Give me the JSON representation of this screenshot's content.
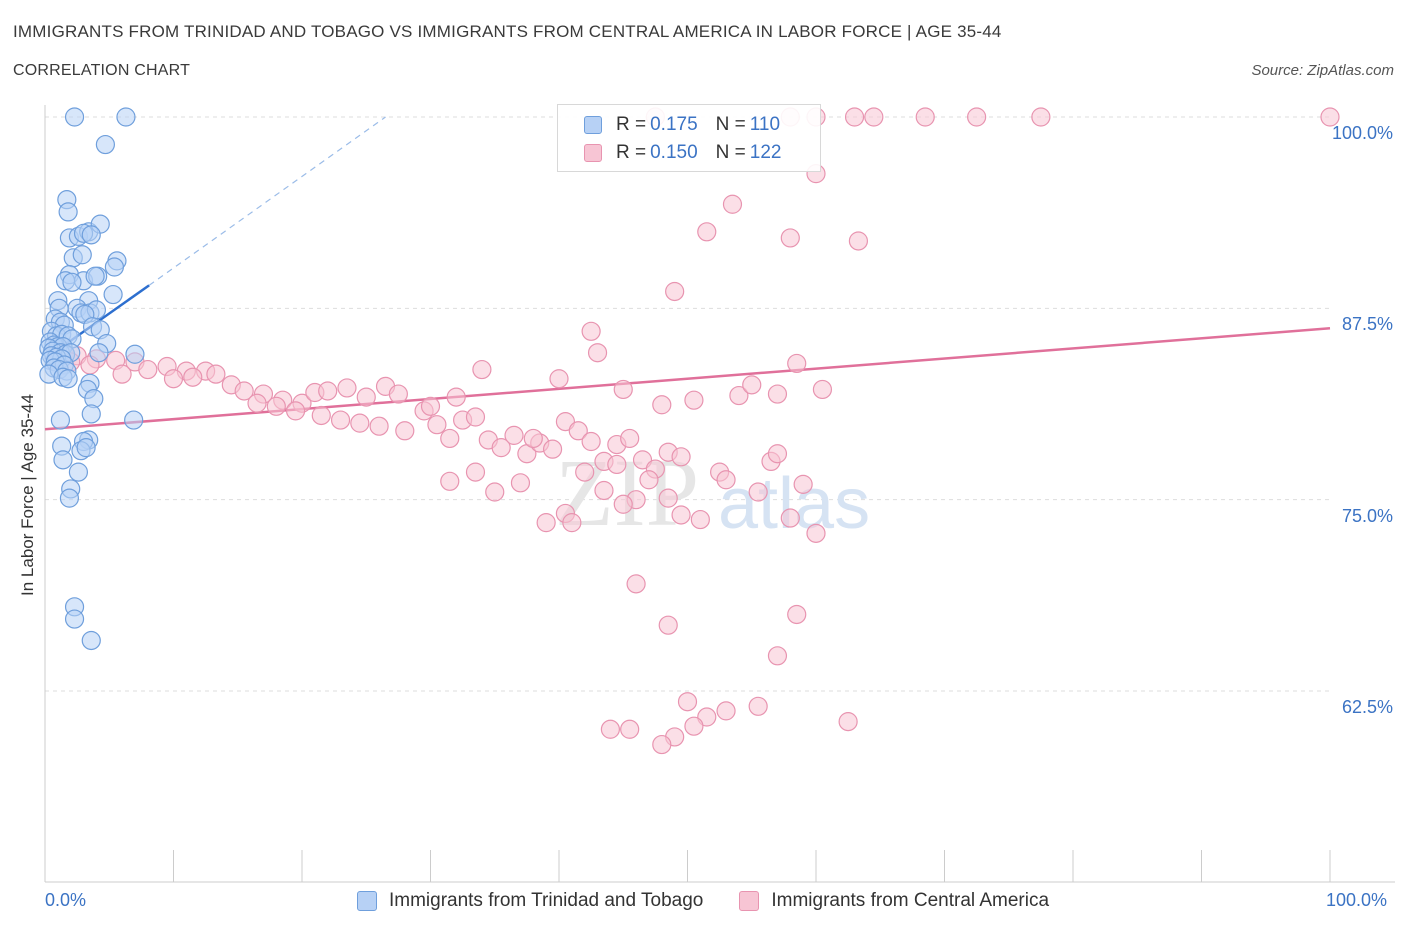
{
  "title": "IMMIGRANTS FROM TRINIDAD AND TOBAGO VS IMMIGRANTS FROM CENTRAL AMERICA IN LABOR FORCE | AGE 35-44",
  "subtitle": "CORRELATION CHART",
  "source": "Source: ZipAtlas.com",
  "watermark": {
    "zip": "ZIP",
    "atlas": "atlas"
  },
  "legend_top": {
    "blue": {
      "r_label": "R = ",
      "r_value": "0.175",
      "n_label": "N = ",
      "n_value": "110"
    },
    "pink": {
      "r_label": "R = ",
      "r_value": "0.150",
      "n_label": "N = ",
      "n_value": "122"
    }
  },
  "legend_bottom": {
    "blue": "Immigrants from Trinidad and Tobago",
    "pink": "Immigrants from Central America"
  },
  "colors": {
    "blue_fill": "#b7d1f5",
    "blue_stroke": "#6f9fdc",
    "blue_line": "#2d6fcf",
    "pink_fill": "#f7c5d4",
    "pink_stroke": "#e894b0",
    "pink_line": "#e0709a",
    "tick_text": "#3b73c4",
    "grid": "#dddddd"
  },
  "chart_data": {
    "type": "scatter",
    "title": "IMMIGRANTS FROM TRINIDAD AND TOBAGO VS IMMIGRANTS FROM CENTRAL AMERICA IN LABOR FORCE | AGE 35-44",
    "xlabel": "",
    "ylabel": "In Labor Force | Age 35-44",
    "xlim": [
      0,
      100
    ],
    "ylim": [
      50,
      100
    ],
    "x_tick_labels": [
      "0.0%",
      "100.0%"
    ],
    "y_ticks": [
      62.5,
      75.0,
      87.5,
      100.0
    ],
    "y_tick_labels": [
      "62.5%",
      "75.0%",
      "87.5%",
      "100.0%"
    ],
    "grid": "horizontal dashed",
    "legend_position": "top-center",
    "series": [
      {
        "name": "Immigrants from Trinidad and Tobago",
        "color": "#6f9fdc",
        "R": 0.175,
        "N": 110,
        "trend": {
          "x": [
            0,
            8.1
          ],
          "y": [
            84.2,
            89.0
          ]
        },
        "trend_extension": {
          "x": [
            8.1,
            26.5
          ],
          "y": [
            89.0,
            100.0
          ]
        },
        "points": [
          [
            2.3,
            100.0
          ],
          [
            6.3,
            100.0
          ],
          [
            4.7,
            98.2
          ],
          [
            1.7,
            94.6
          ],
          [
            1.8,
            93.8
          ],
          [
            1.9,
            92.1
          ],
          [
            2.6,
            92.2
          ],
          [
            3.4,
            92.5
          ],
          [
            3.0,
            92.4
          ],
          [
            4.3,
            93.0
          ],
          [
            3.6,
            92.3
          ],
          [
            2.2,
            90.8
          ],
          [
            2.9,
            91.0
          ],
          [
            5.6,
            90.6
          ],
          [
            5.4,
            90.2
          ],
          [
            1.9,
            89.7
          ],
          [
            1.6,
            89.3
          ],
          [
            3.0,
            89.3
          ],
          [
            4.1,
            89.6
          ],
          [
            3.9,
            89.6
          ],
          [
            2.1,
            89.2
          ],
          [
            5.3,
            88.4
          ],
          [
            1.0,
            88.0
          ],
          [
            3.4,
            88.0
          ],
          [
            1.1,
            87.5
          ],
          [
            2.5,
            87.5
          ],
          [
            2.8,
            87.2
          ],
          [
            3.5,
            87.2
          ],
          [
            4.0,
            87.4
          ],
          [
            3.1,
            87.1
          ],
          [
            0.8,
            86.8
          ],
          [
            1.2,
            86.6
          ],
          [
            1.5,
            86.4
          ],
          [
            3.7,
            86.3
          ],
          [
            4.3,
            86.1
          ],
          [
            0.5,
            86.0
          ],
          [
            0.9,
            85.7
          ],
          [
            1.3,
            85.8
          ],
          [
            1.8,
            85.7
          ],
          [
            2.1,
            85.5
          ],
          [
            0.4,
            85.3
          ],
          [
            0.7,
            85.1
          ],
          [
            1.0,
            85.0
          ],
          [
            1.4,
            85.0
          ],
          [
            4.8,
            85.2
          ],
          [
            0.3,
            84.9
          ],
          [
            0.6,
            84.7
          ],
          [
            1.2,
            84.6
          ],
          [
            1.6,
            84.5
          ],
          [
            2.0,
            84.6
          ],
          [
            0.5,
            84.4
          ],
          [
            0.9,
            84.3
          ],
          [
            1.3,
            84.2
          ],
          [
            4.2,
            84.6
          ],
          [
            7.0,
            84.5
          ],
          [
            0.4,
            84.1
          ],
          [
            0.8,
            84.0
          ],
          [
            1.5,
            83.8
          ],
          [
            0.7,
            83.6
          ],
          [
            1.1,
            83.5
          ],
          [
            1.7,
            83.4
          ],
          [
            0.3,
            83.2
          ],
          [
            1.4,
            83.0
          ],
          [
            1.8,
            82.9
          ],
          [
            3.5,
            82.6
          ],
          [
            3.3,
            82.2
          ],
          [
            3.8,
            81.6
          ],
          [
            3.6,
            80.6
          ],
          [
            1.2,
            80.2
          ],
          [
            6.9,
            80.2
          ],
          [
            3.4,
            78.9
          ],
          [
            3.0,
            78.8
          ],
          [
            1.3,
            78.5
          ],
          [
            2.8,
            78.2
          ],
          [
            3.2,
            78.4
          ],
          [
            1.4,
            77.6
          ],
          [
            2.6,
            76.8
          ],
          [
            2.0,
            75.7
          ],
          [
            1.9,
            75.1
          ],
          [
            2.3,
            68.0
          ],
          [
            2.3,
            67.2
          ],
          [
            3.6,
            65.8
          ]
        ]
      },
      {
        "name": "Immigrants from Central America",
        "color": "#e894b0",
        "R": 0.15,
        "N": 122,
        "trend": {
          "x": [
            0,
            100
          ],
          "y": [
            79.6,
            86.2
          ]
        },
        "points": [
          [
            47.5,
            100.0
          ],
          [
            58.0,
            100.0
          ],
          [
            60.0,
            100.0
          ],
          [
            63.0,
            100.0
          ],
          [
            64.5,
            100.0
          ],
          [
            68.5,
            100.0
          ],
          [
            72.5,
            100.0
          ],
          [
            77.5,
            100.0
          ],
          [
            100.0,
            100.0
          ],
          [
            60.0,
            96.3
          ],
          [
            53.5,
            94.3
          ],
          [
            51.5,
            92.5
          ],
          [
            58.0,
            92.1
          ],
          [
            63.3,
            91.9
          ],
          [
            49.0,
            88.6
          ],
          [
            42.5,
            86.0
          ],
          [
            1.5,
            84.6
          ],
          [
            2.5,
            84.4
          ],
          [
            4.0,
            84.2
          ],
          [
            5.5,
            84.1
          ],
          [
            7.0,
            84.0
          ],
          [
            8.0,
            83.5
          ],
          [
            9.5,
            83.7
          ],
          [
            11.0,
            83.4
          ],
          [
            12.5,
            83.4
          ],
          [
            13.3,
            83.2
          ],
          [
            2.0,
            84.0
          ],
          [
            3.5,
            83.8
          ],
          [
            6.0,
            83.2
          ],
          [
            10.0,
            82.9
          ],
          [
            11.5,
            83.0
          ],
          [
            14.5,
            82.5
          ],
          [
            15.5,
            82.1
          ],
          [
            17.0,
            81.9
          ],
          [
            18.5,
            81.5
          ],
          [
            20.0,
            81.3
          ],
          [
            21.0,
            82.0
          ],
          [
            22.0,
            82.1
          ],
          [
            23.5,
            82.3
          ],
          [
            25.0,
            81.7
          ],
          [
            26.5,
            82.4
          ],
          [
            27.5,
            81.9
          ],
          [
            16.5,
            81.3
          ],
          [
            18.0,
            81.1
          ],
          [
            19.5,
            80.8
          ],
          [
            21.5,
            80.5
          ],
          [
            23.0,
            80.2
          ],
          [
            24.5,
            80.0
          ],
          [
            26.0,
            79.8
          ],
          [
            28.0,
            79.5
          ],
          [
            29.5,
            80.8
          ],
          [
            30.5,
            79.9
          ],
          [
            31.5,
            79.0
          ],
          [
            32.5,
            80.2
          ],
          [
            33.5,
            80.4
          ],
          [
            34.5,
            78.9
          ],
          [
            35.5,
            78.4
          ],
          [
            36.5,
            79.2
          ],
          [
            37.5,
            78.0
          ],
          [
            38.5,
            78.7
          ],
          [
            39.5,
            78.3
          ],
          [
            40.5,
            80.1
          ],
          [
            41.5,
            79.5
          ],
          [
            42.5,
            78.8
          ],
          [
            43.5,
            77.5
          ],
          [
            44.5,
            78.6
          ],
          [
            45.5,
            79.0
          ],
          [
            46.5,
            77.6
          ],
          [
            47.5,
            77.0
          ],
          [
            48.5,
            78.1
          ],
          [
            49.5,
            77.8
          ],
          [
            30.0,
            81.1
          ],
          [
            32.0,
            81.7
          ],
          [
            34.0,
            83.5
          ],
          [
            38.0,
            79.0
          ],
          [
            40.0,
            82.9
          ],
          [
            43.0,
            84.6
          ],
          [
            45.0,
            82.2
          ],
          [
            48.0,
            81.2
          ],
          [
            50.5,
            81.5
          ],
          [
            52.5,
            76.8
          ],
          [
            54.0,
            81.8
          ],
          [
            55.0,
            82.5
          ],
          [
            57.0,
            81.9
          ],
          [
            58.5,
            83.9
          ],
          [
            56.5,
            77.5
          ],
          [
            59.0,
            76.0
          ],
          [
            60.5,
            82.2
          ],
          [
            37.0,
            76.1
          ],
          [
            40.5,
            74.1
          ],
          [
            44.5,
            77.3
          ],
          [
            46.0,
            75.0
          ],
          [
            49.5,
            74.0
          ],
          [
            51.0,
            73.7
          ],
          [
            53.0,
            76.3
          ],
          [
            55.5,
            75.5
          ],
          [
            57.0,
            78.0
          ],
          [
            58.0,
            73.8
          ],
          [
            60.0,
            72.8
          ],
          [
            42.0,
            76.8
          ],
          [
            43.5,
            75.6
          ],
          [
            45.0,
            74.7
          ],
          [
            47.0,
            76.3
          ],
          [
            48.5,
            75.1
          ],
          [
            31.5,
            76.2
          ],
          [
            33.5,
            76.8
          ],
          [
            35.0,
            75.5
          ],
          [
            39.0,
            73.5
          ],
          [
            41.0,
            73.5
          ],
          [
            46.0,
            69.5
          ],
          [
            48.5,
            66.8
          ],
          [
            50.0,
            61.8
          ],
          [
            51.5,
            60.8
          ],
          [
            53.0,
            61.2
          ],
          [
            55.5,
            61.5
          ],
          [
            57.0,
            64.8
          ],
          [
            58.5,
            67.5
          ],
          [
            49.0,
            59.5
          ],
          [
            50.5,
            60.2
          ],
          [
            62.5,
            60.5
          ],
          [
            44.0,
            60.0
          ],
          [
            45.5,
            60.0
          ],
          [
            48.0,
            59.0
          ]
        ]
      }
    ]
  }
}
